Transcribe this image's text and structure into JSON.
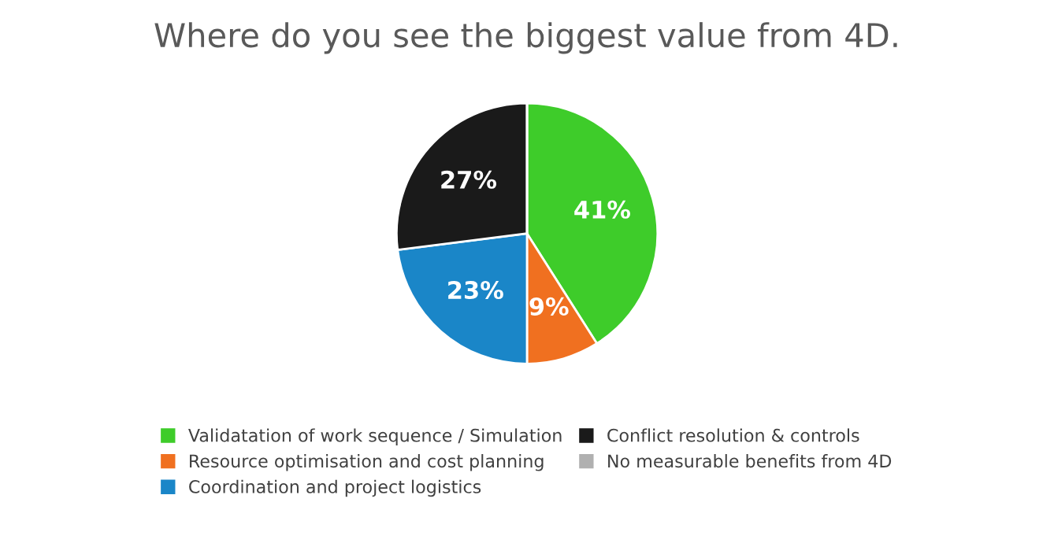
{
  "chart_data": {
    "type": "pie",
    "title": "Where do you see the biggest value from 4D.",
    "categories": [
      "Validatation of work sequence / Simulation",
      "Resource optimisation and cost planning",
      "Coordination and project logistics",
      "Conflict resolution & controls",
      "No measurable benefits from 4D"
    ],
    "values": [
      41,
      9,
      23,
      27,
      0
    ],
    "colors": [
      "#3ecc2a",
      "#f07020",
      "#1a86c8",
      "#1a1a1a",
      "#b0b0b0"
    ],
    "value_labels": [
      "41%",
      "9%",
      "23%",
      "27%",
      null
    ],
    "legend": "bottom"
  }
}
